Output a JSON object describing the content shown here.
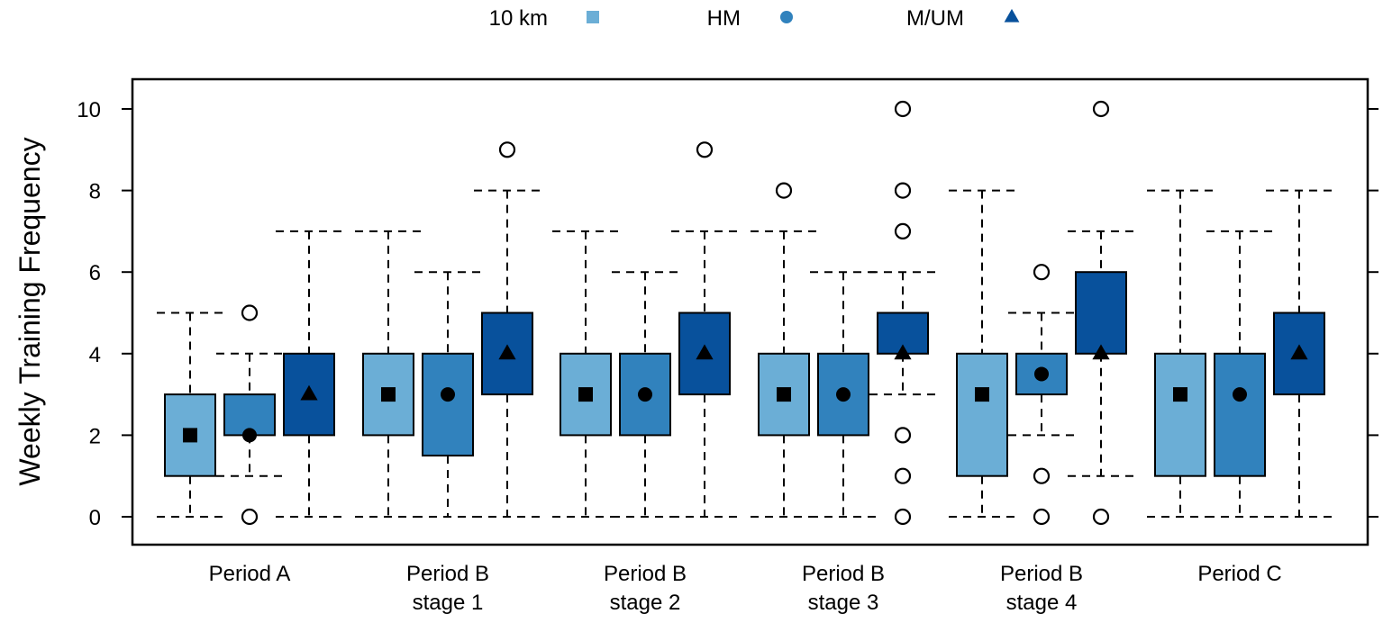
{
  "chart_data": {
    "type": "boxplot",
    "title": "",
    "xlabel": "",
    "ylabel": "Weekly Training Frequency",
    "ylim": [
      -0.7,
      10.7
    ],
    "yticks": [
      "0",
      "2",
      "4",
      "6",
      "8",
      "10"
    ],
    "legend_placement": "top-center",
    "legend": [
      {
        "name": "10 km",
        "marker": "square",
        "color": "#6baed6"
      },
      {
        "name": "HM",
        "marker": "circle",
        "color": "#3182bd"
      },
      {
        "name": "M/UM",
        "marker": "triangle",
        "color": "#08519c"
      }
    ],
    "categories": [
      {
        "line1": "Period A",
        "line2": ""
      },
      {
        "line1": "Period B",
        "line2": "stage 1"
      },
      {
        "line1": "Period B",
        "line2": "stage 2"
      },
      {
        "line1": "Period B",
        "line2": "stage 3"
      },
      {
        "line1": "Period B",
        "line2": "stage 4"
      },
      {
        "line1": "Period C",
        "line2": ""
      }
    ],
    "series": [
      {
        "name": "10 km",
        "boxes": [
          {
            "whisk_lo": 0,
            "q1": 1,
            "median": 2,
            "q3": 3,
            "whisk_hi": 5,
            "outliers": []
          },
          {
            "whisk_lo": 0,
            "q1": 2,
            "median": 3,
            "q3": 4,
            "whisk_hi": 7,
            "outliers": []
          },
          {
            "whisk_lo": 0,
            "q1": 2,
            "median": 3,
            "q3": 4,
            "whisk_hi": 7,
            "outliers": []
          },
          {
            "whisk_lo": 0,
            "q1": 2,
            "median": 3,
            "q3": 4,
            "whisk_hi": 7,
            "outliers": [
              8
            ]
          },
          {
            "whisk_lo": 0,
            "q1": 1,
            "median": 3,
            "q3": 4,
            "whisk_hi": 8,
            "outliers": []
          },
          {
            "whisk_lo": 0,
            "q1": 1,
            "median": 3,
            "q3": 4,
            "whisk_hi": 8,
            "outliers": []
          }
        ]
      },
      {
        "name": "HM",
        "boxes": [
          {
            "whisk_lo": 1,
            "q1": 2,
            "median": 2,
            "q3": 3,
            "whisk_hi": 4,
            "outliers": [
              5,
              0
            ]
          },
          {
            "whisk_lo": 0,
            "q1": 1.5,
            "median": 3,
            "q3": 4,
            "whisk_hi": 6,
            "outliers": []
          },
          {
            "whisk_lo": 0,
            "q1": 2,
            "median": 3,
            "q3": 4,
            "whisk_hi": 6,
            "outliers": []
          },
          {
            "whisk_lo": 0,
            "q1": 2,
            "median": 3,
            "q3": 4,
            "whisk_hi": 6,
            "outliers": []
          },
          {
            "whisk_lo": 2,
            "q1": 3,
            "median": 3.5,
            "q3": 4,
            "whisk_hi": 5,
            "outliers": [
              6,
              1,
              0
            ]
          },
          {
            "whisk_lo": 0,
            "q1": 1,
            "median": 3,
            "q3": 4,
            "whisk_hi": 7,
            "outliers": []
          }
        ]
      },
      {
        "name": "M/UM",
        "boxes": [
          {
            "whisk_lo": 0,
            "q1": 2,
            "median": 3,
            "q3": 4,
            "whisk_hi": 7,
            "outliers": []
          },
          {
            "whisk_lo": 0,
            "q1": 3,
            "median": 4,
            "q3": 5,
            "whisk_hi": 8,
            "outliers": [
              9
            ]
          },
          {
            "whisk_lo": 0,
            "q1": 3,
            "median": 4,
            "q3": 5,
            "whisk_hi": 7,
            "outliers": [
              9
            ]
          },
          {
            "whisk_lo": 3,
            "q1": 4,
            "median": 4,
            "q3": 5,
            "whisk_hi": 6,
            "outliers": [
              10,
              8,
              7,
              2,
              1,
              0
            ]
          },
          {
            "whisk_lo": 1,
            "q1": 4,
            "median": 4,
            "q3": 6,
            "whisk_hi": 7,
            "outliers": [
              10,
              0
            ]
          },
          {
            "whisk_lo": 0,
            "q1": 3,
            "median": 4,
            "q3": 5,
            "whisk_hi": 8,
            "outliers": []
          }
        ]
      }
    ]
  }
}
